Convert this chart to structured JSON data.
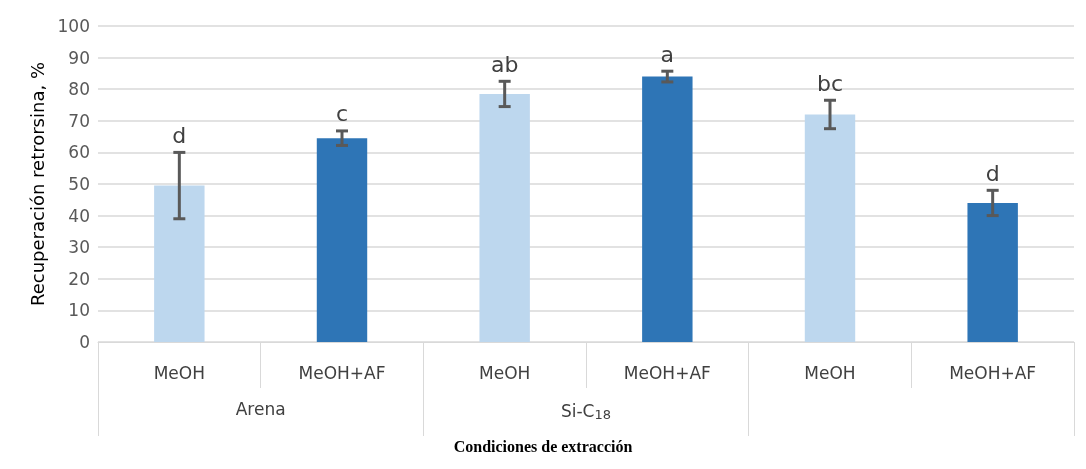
{
  "chart_data": {
    "type": "bar",
    "xlabel": "Condiciones de extracción",
    "ylabel": "Recuperación retrorsina, %",
    "categories": [
      "MeOH",
      "MeOH+AF",
      "MeOH",
      "MeOH+AF",
      "MeOH",
      "MeOH+AF"
    ],
    "values": [
      49.5,
      64.5,
      78.5,
      84,
      72,
      44
    ],
    "errors": [
      10.5,
      2.3,
      4,
      1.7,
      4.5,
      4
    ],
    "value_labels": [
      "d",
      "c",
      "ab",
      "a",
      "bc",
      "d"
    ],
    "colors": [
      "#bdd7ee",
      "#2e75b6",
      "#bdd7ee",
      "#2e75b6",
      "#bdd7ee",
      "#2e75b6"
    ],
    "annotations": [
      "Arena",
      "Si-C$_{18}$"
    ],
    "ylim": [
      0,
      100
    ],
    "yticks": [
      0,
      10,
      20,
      30,
      40,
      50,
      60,
      70,
      80,
      90,
      100
    ],
    "grid": "y"
  }
}
